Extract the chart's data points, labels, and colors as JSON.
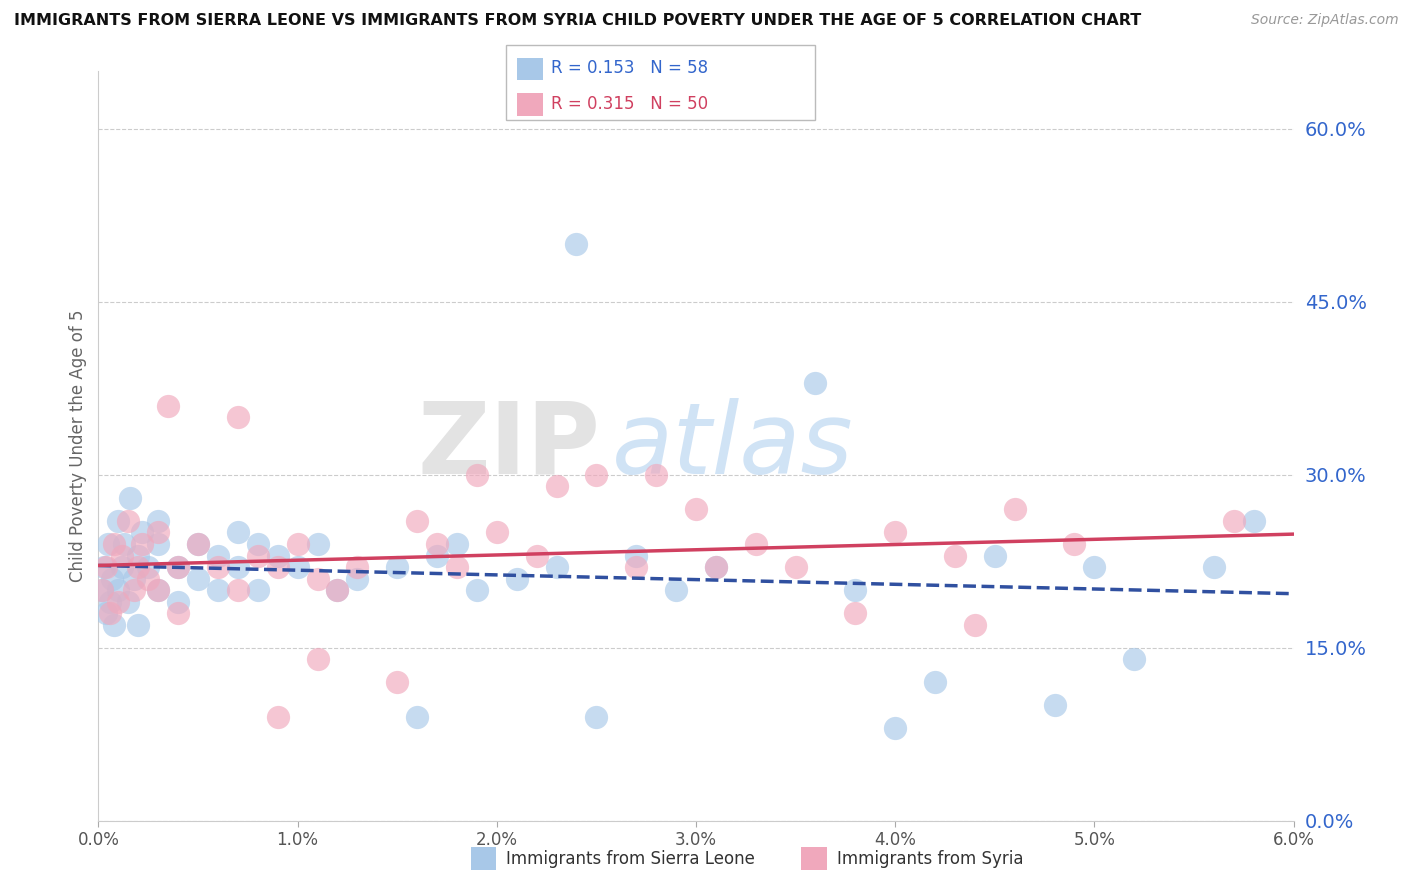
{
  "title": "IMMIGRANTS FROM SIERRA LEONE VS IMMIGRANTS FROM SYRIA CHILD POVERTY UNDER THE AGE OF 5 CORRELATION CHART",
  "source": "Source: ZipAtlas.com",
  "ylabel": "Child Poverty Under the Age of 5",
  "xlabel": "",
  "legend_label_1": "Immigrants from Sierra Leone",
  "legend_label_2": "Immigrants from Syria",
  "R1": 0.153,
  "N1": 58,
  "R2": 0.315,
  "N2": 50,
  "color1": "#a8c8e8",
  "color2": "#f0a8bc",
  "trendline_color1": "#3050a0",
  "trendline_color2": "#d04060",
  "xmin": 0.0,
  "xmax": 0.06,
  "ymin": 0.0,
  "ymax": 0.65,
  "yticks": [
    0.0,
    0.15,
    0.3,
    0.45,
    0.6
  ],
  "watermark_zip": "ZIP",
  "watermark_atlas": "atlas",
  "background_color": "#ffffff",
  "sl_x": [
    0.0002,
    0.0003,
    0.0004,
    0.0005,
    0.0006,
    0.0007,
    0.0008,
    0.001,
    0.001,
    0.0012,
    0.0013,
    0.0015,
    0.0016,
    0.0018,
    0.002,
    0.002,
    0.0022,
    0.0025,
    0.003,
    0.003,
    0.003,
    0.004,
    0.004,
    0.005,
    0.005,
    0.006,
    0.006,
    0.007,
    0.007,
    0.008,
    0.008,
    0.009,
    0.01,
    0.011,
    0.012,
    0.013,
    0.015,
    0.016,
    0.017,
    0.018,
    0.019,
    0.021,
    0.023,
    0.025,
    0.027,
    0.029,
    0.031,
    0.024,
    0.036,
    0.038,
    0.04,
    0.042,
    0.045,
    0.048,
    0.05,
    0.052,
    0.056,
    0.058
  ],
  "sl_y": [
    0.2,
    0.22,
    0.18,
    0.24,
    0.19,
    0.21,
    0.17,
    0.26,
    0.2,
    0.22,
    0.24,
    0.19,
    0.28,
    0.21,
    0.23,
    0.17,
    0.25,
    0.22,
    0.26,
    0.2,
    0.24,
    0.22,
    0.19,
    0.21,
    0.24,
    0.23,
    0.2,
    0.25,
    0.22,
    0.2,
    0.24,
    0.23,
    0.22,
    0.24,
    0.2,
    0.21,
    0.22,
    0.09,
    0.23,
    0.24,
    0.2,
    0.21,
    0.22,
    0.09,
    0.23,
    0.2,
    0.22,
    0.5,
    0.38,
    0.2,
    0.08,
    0.12,
    0.23,
    0.1,
    0.22,
    0.14,
    0.22,
    0.26
  ],
  "sy_x": [
    0.0002,
    0.0004,
    0.0006,
    0.0008,
    0.001,
    0.0012,
    0.0015,
    0.0018,
    0.002,
    0.0022,
    0.0025,
    0.003,
    0.003,
    0.004,
    0.004,
    0.005,
    0.006,
    0.007,
    0.008,
    0.009,
    0.01,
    0.011,
    0.012,
    0.013,
    0.015,
    0.016,
    0.017,
    0.018,
    0.02,
    0.022,
    0.025,
    0.027,
    0.03,
    0.033,
    0.035,
    0.038,
    0.04,
    0.043,
    0.046,
    0.049,
    0.0035,
    0.007,
    0.011,
    0.019,
    0.028,
    0.057,
    0.023,
    0.031,
    0.009,
    0.044
  ],
  "sy_y": [
    0.2,
    0.22,
    0.18,
    0.24,
    0.19,
    0.23,
    0.26,
    0.2,
    0.22,
    0.24,
    0.21,
    0.25,
    0.2,
    0.22,
    0.18,
    0.24,
    0.22,
    0.2,
    0.23,
    0.22,
    0.24,
    0.21,
    0.2,
    0.22,
    0.12,
    0.26,
    0.24,
    0.22,
    0.25,
    0.23,
    0.3,
    0.22,
    0.27,
    0.24,
    0.22,
    0.18,
    0.25,
    0.23,
    0.27,
    0.24,
    0.36,
    0.35,
    0.14,
    0.3,
    0.3,
    0.26,
    0.29,
    0.22,
    0.09,
    0.17
  ]
}
